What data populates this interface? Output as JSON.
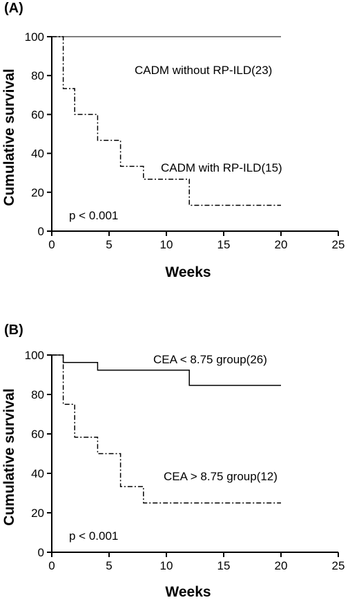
{
  "chart_data": [
    {
      "type": "line",
      "step": true,
      "panel_label": "(A)",
      "xlabel": "Weeks",
      "ylabel": "Cumulative survival",
      "xlim": [
        0,
        25
      ],
      "ylim": [
        0,
        100
      ],
      "xticks": [
        "0",
        "5",
        "10",
        "15",
        "20",
        "25"
      ],
      "yticks": [
        "0",
        "20",
        "40",
        "60",
        "80",
        "100"
      ],
      "grid": false,
      "p_value": "p < 0.001",
      "series": [
        {
          "name": "CADM without RP-ILD(23)",
          "line_style": "solid",
          "color": "#555555",
          "points": [
            [
              0,
              100
            ],
            [
              20,
              100
            ]
          ]
        },
        {
          "name": "CADM with RP-ILD(15)",
          "line_style": "dash-dot",
          "color": "#000000",
          "points": [
            [
              0,
              100
            ],
            [
              1,
              100
            ],
            [
              1,
              73.3
            ],
            [
              2,
              73.3
            ],
            [
              2,
              60
            ],
            [
              4,
              60
            ],
            [
              4,
              46.7
            ],
            [
              6,
              46.7
            ],
            [
              6,
              33.3
            ],
            [
              8,
              33.3
            ],
            [
              8,
              26.7
            ],
            [
              12,
              26.7
            ],
            [
              12,
              13.3
            ],
            [
              20,
              13.3
            ]
          ]
        }
      ]
    },
    {
      "type": "line",
      "step": true,
      "panel_label": "(B)",
      "xlabel": "Weeks",
      "ylabel": "Cumulative survival",
      "xlim": [
        0,
        25
      ],
      "ylim": [
        0,
        100
      ],
      "xticks": [
        "0",
        "5",
        "10",
        "15",
        "20",
        "25"
      ],
      "yticks": [
        "0",
        "20",
        "40",
        "60",
        "80",
        "100"
      ],
      "grid": false,
      "p_value": "p < 0.001",
      "series": [
        {
          "name": "CEA < 8.75 group(26)",
          "line_style": "solid",
          "color": "#000000",
          "points": [
            [
              0,
              100
            ],
            [
              1,
              100
            ],
            [
              1,
              96.2
            ],
            [
              4,
              96.2
            ],
            [
              4,
              92.3
            ],
            [
              12,
              92.3
            ],
            [
              12,
              84.6
            ],
            [
              20,
              84.6
            ]
          ]
        },
        {
          "name": "CEA > 8.75 group(12)",
          "line_style": "dash-dot",
          "color": "#000000",
          "points": [
            [
              0,
              100
            ],
            [
              1,
              100
            ],
            [
              1,
              75
            ],
            [
              2,
              75
            ],
            [
              2,
              58.3
            ],
            [
              4,
              58.3
            ],
            [
              4,
              50
            ],
            [
              6,
              50
            ],
            [
              6,
              33.3
            ],
            [
              8,
              33.3
            ],
            [
              8,
              25
            ],
            [
              20,
              25
            ]
          ]
        }
      ]
    }
  ]
}
